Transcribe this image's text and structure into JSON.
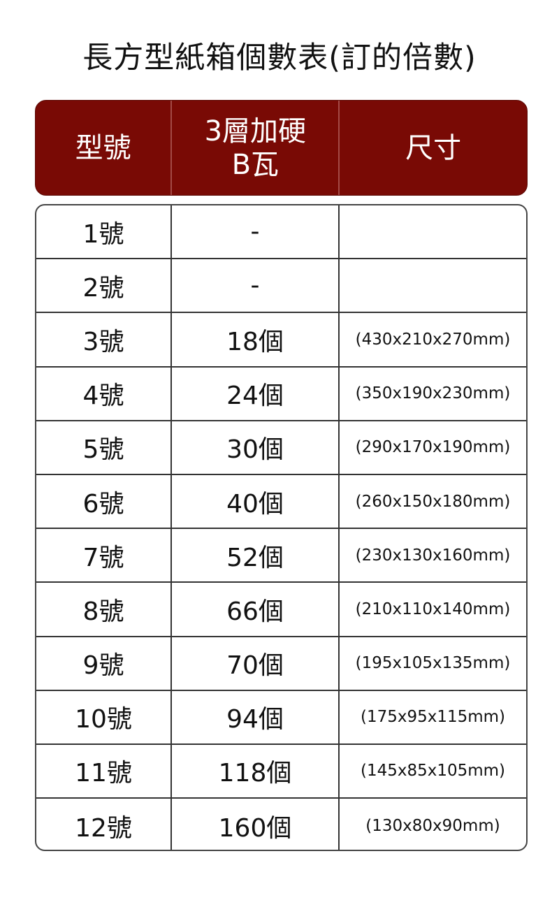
{
  "title": "長方型紙箱個數表(訂的倍數)",
  "header_color": "#790a05",
  "columns": [
    "型號",
    "3層加硬\nB瓦",
    "尺寸"
  ],
  "rows": [
    {
      "model": "1號",
      "count": "-",
      "size": ""
    },
    {
      "model": "2號",
      "count": "-",
      "size": ""
    },
    {
      "model": "3號",
      "count": "18個",
      "size": "(430x210x270mm)"
    },
    {
      "model": "4號",
      "count": "24個",
      "size": "(350x190x230mm)"
    },
    {
      "model": "5號",
      "count": "30個",
      "size": "(290x170x190mm)"
    },
    {
      "model": "6號",
      "count": "40個",
      "size": "(260x150x180mm)"
    },
    {
      "model": "7號",
      "count": "52個",
      "size": "(230x130x160mm)"
    },
    {
      "model": "8號",
      "count": "66個",
      "size": "(210x110x140mm)"
    },
    {
      "model": "9號",
      "count": "70個",
      "size": "(195x105x135mm)"
    },
    {
      "model": "10號",
      "count": "94個",
      "size": "(175x95x115mm)"
    },
    {
      "model": "11號",
      "count": "118個",
      "size": "(145x85x105mm)"
    },
    {
      "model": "12號",
      "count": "160個",
      "size": "(130x80x90mm)"
    }
  ]
}
